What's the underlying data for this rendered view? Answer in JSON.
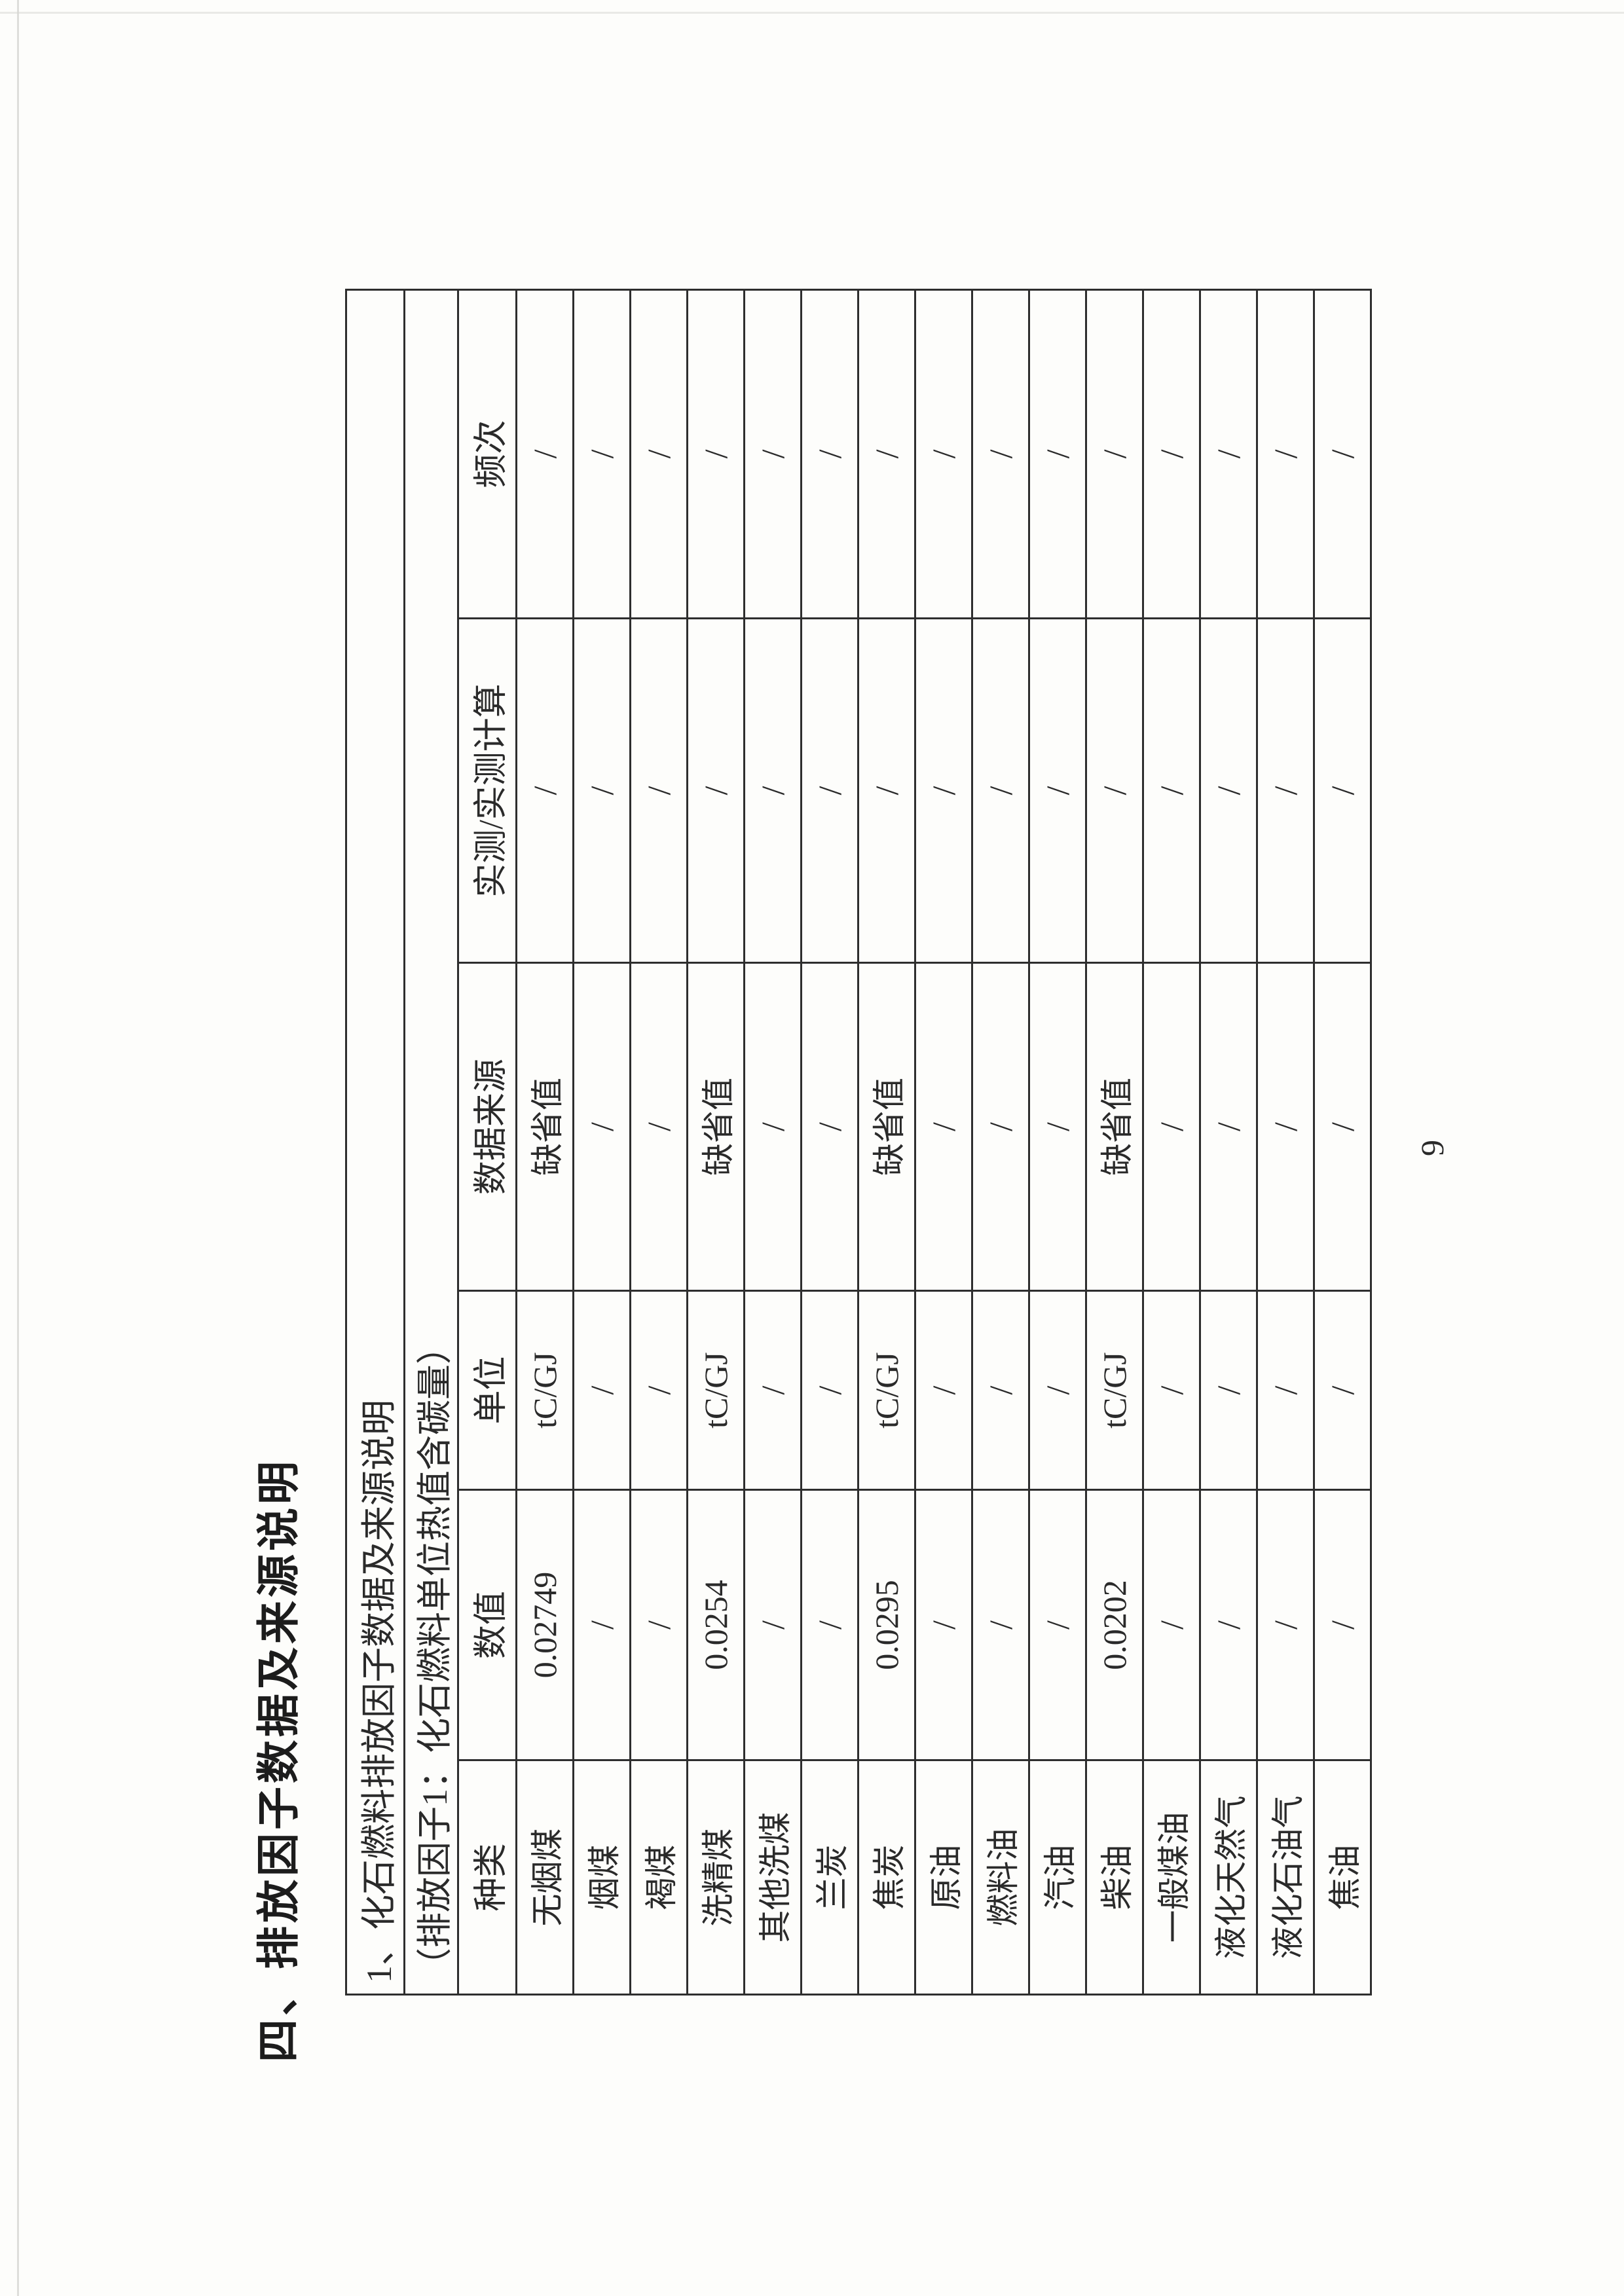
{
  "page": {
    "title": "四、排放因子数据及来源说明",
    "page_number": "9"
  },
  "table": {
    "section_heading": "1、化石燃料排放因子数据及来源说明",
    "sub_heading": "（排放因子1：化石燃料单位热值含碳量）",
    "columns": [
      "种类",
      "数值",
      "单位",
      "数据来源",
      "实测/实测计算",
      "频次"
    ],
    "rows": [
      [
        "无烟煤",
        "0.02749",
        "tC/GJ",
        "缺省值",
        "/",
        "/"
      ],
      [
        "烟煤",
        "/",
        "/",
        "/",
        "/",
        "/"
      ],
      [
        "褐煤",
        "/",
        "/",
        "/",
        "/",
        "/"
      ],
      [
        "洗精煤",
        "0.0254",
        "tC/GJ",
        "缺省值",
        "/",
        "/"
      ],
      [
        "其他洗煤",
        "/",
        "/",
        "/",
        "/",
        "/"
      ],
      [
        "兰炭",
        "/",
        "/",
        "/",
        "/",
        "/"
      ],
      [
        "焦炭",
        "0.0295",
        "tC/GJ",
        "缺省值",
        "/",
        "/"
      ],
      [
        "原油",
        "/",
        "/",
        "/",
        "/",
        "/"
      ],
      [
        "燃料油",
        "/",
        "/",
        "/",
        "/",
        "/"
      ],
      [
        "汽油",
        "/",
        "/",
        "/",
        "/",
        "/"
      ],
      [
        "柴油",
        "0.0202",
        "tC/GJ",
        "缺省值",
        "/",
        "/"
      ],
      [
        "一般煤油",
        "/",
        "/",
        "/",
        "/",
        "/"
      ],
      [
        "液化天然气",
        "/",
        "/",
        "/",
        "/",
        "/"
      ],
      [
        "液化石油气",
        "/",
        "/",
        "/",
        "/",
        "/"
      ],
      [
        "焦油",
        "/",
        "/",
        "/",
        "/",
        "/"
      ]
    ]
  },
  "colors": {
    "text": "#262626",
    "border": "#2e2e2e",
    "paper": "#fdfdfb"
  }
}
